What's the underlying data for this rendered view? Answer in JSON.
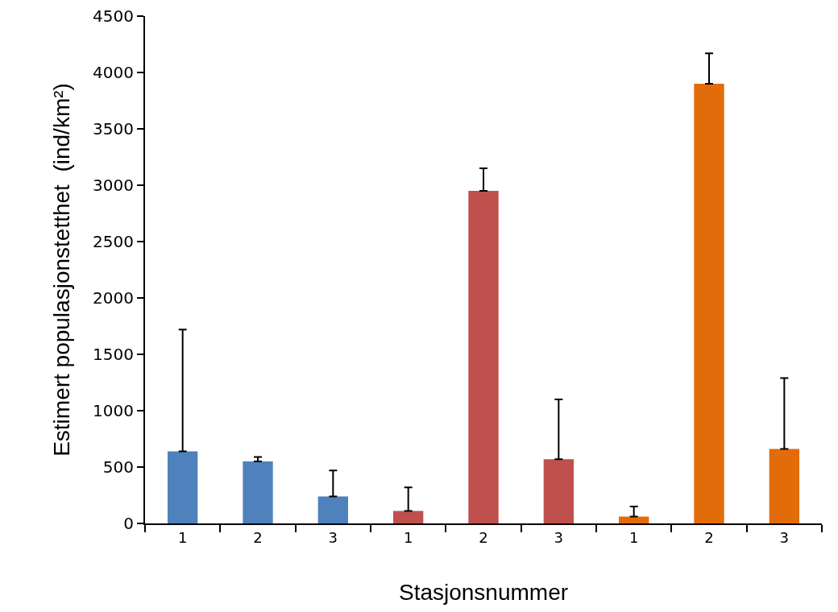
{
  "chart_data": {
    "type": "bar",
    "xlabel": "Stasjonsnummer",
    "ylabel": "Estimert populasjonstetthet  (ind/km²)",
    "categories": [
      "1",
      "2",
      "3",
      "1",
      "2",
      "3",
      "1",
      "2",
      "3"
    ],
    "values": [
      640,
      550,
      240,
      110,
      2950,
      570,
      60,
      3900,
      660
    ],
    "colors": [
      "#4f81bd",
      "#4f81bd",
      "#4f81bd",
      "#c0504d",
      "#c0504d",
      "#c0504d",
      "#e36c0a",
      "#e36c0a",
      "#e36c0a"
    ],
    "errors": [
      [
        640,
        1720
      ],
      [
        550,
        590
      ],
      [
        240,
        470
      ],
      [
        110,
        320
      ],
      [
        2950,
        3150
      ],
      [
        570,
        1100
      ],
      [
        60,
        150
      ],
      [
        3900,
        4170
      ],
      [
        660,
        1290
      ]
    ],
    "ylim": [
      0,
      4500
    ],
    "yticks": [
      0,
      500,
      1000,
      1500,
      2000,
      2500,
      3000,
      3500,
      4000,
      4500
    ],
    "grid": false
  }
}
